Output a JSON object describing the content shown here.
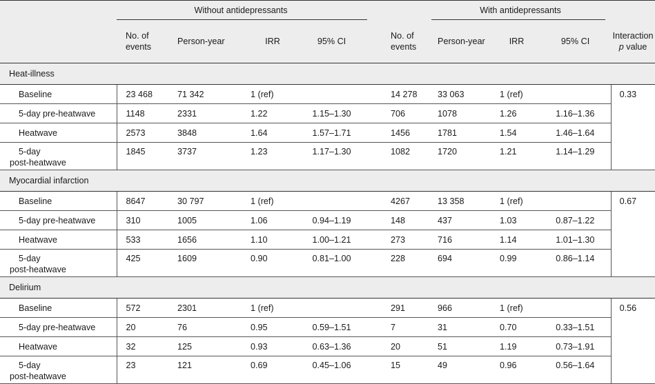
{
  "headers": {
    "group1": "Without antidepressants",
    "group2": "With antidepressants",
    "col_events_1": "No. of",
    "col_events_2": "events",
    "col_py": "Person-year",
    "col_irr": "IRR",
    "col_ci": "95% CI",
    "col_int_1": "Interaction",
    "col_int_2_p": "p",
    "col_int_2_rest": " value"
  },
  "sections": [
    {
      "title": "Heat-illness",
      "interaction": "0.33",
      "rows": [
        {
          "label": "Baseline",
          "e1": "23 468",
          "py1": "71 342",
          "irr1": "1 (ref)",
          "ci1": "",
          "e2": "14 278",
          "py2": "33 063",
          "irr2": "1 (ref)",
          "ci2": ""
        },
        {
          "label": "5-day pre-heatwave",
          "e1": "1148",
          "py1": "2331",
          "irr1": "1.22",
          "ci1": "1.15–1.30",
          "e2": "706",
          "py2": "1078",
          "irr2": "1.26",
          "ci2": "1.16–1.36"
        },
        {
          "label": "Heatwave",
          "e1": "2573",
          "py1": "3848",
          "irr1": "1.64",
          "ci1": "1.57–1.71",
          "e2": "1456",
          "py2": "1781",
          "irr2": "1.54",
          "ci2": "1.46–1.64"
        },
        {
          "label": "5-day",
          "label2": "post-heatwave",
          "e1": "1845",
          "py1": "3737",
          "irr1": "1.23",
          "ci1": "1.17–1.30",
          "e2": "1082",
          "py2": "1720",
          "irr2": "1.21",
          "ci2": "1.14–1.29"
        }
      ]
    },
    {
      "title": "Myocardial infarction",
      "interaction": "0.67",
      "rows": [
        {
          "label": "Baseline",
          "e1": "8647",
          "py1": "30 797",
          "irr1": "1 (ref)",
          "ci1": "",
          "e2": "4267",
          "py2": "13 358",
          "irr2": "1 (ref)",
          "ci2": ""
        },
        {
          "label": "5-day pre-heatwave",
          "e1": "310",
          "py1": "1005",
          "irr1": "1.06",
          "ci1": "0.94–1.19",
          "e2": "148",
          "py2": "437",
          "irr2": "1.03",
          "ci2": "0.87–1.22"
        },
        {
          "label": "Heatwave",
          "e1": "533",
          "py1": "1656",
          "irr1": "1.10",
          "ci1": "1.00–1.21",
          "e2": "273",
          "py2": "716",
          "irr2": "1.14",
          "ci2": "1.01–1.30"
        },
        {
          "label": "5-day",
          "label2": "post-heatwave",
          "e1": "425",
          "py1": "1609",
          "irr1": "0.90",
          "ci1": "0.81–1.00",
          "e2": "228",
          "py2": "694",
          "irr2": "0.99",
          "ci2": "0.86–1.14"
        }
      ]
    },
    {
      "title": "Delirium",
      "interaction": "0.56",
      "rows": [
        {
          "label": "Baseline",
          "e1": "572",
          "py1": "2301",
          "irr1": "1 (ref)",
          "ci1": "",
          "e2": "291",
          "py2": "966",
          "irr2": "1 (ref)",
          "ci2": ""
        },
        {
          "label": "5-day pre-heatwave",
          "e1": "20",
          "py1": "76",
          "irr1": "0.95",
          "ci1": "0.59–1.51",
          "e2": "7",
          "py2": "31",
          "irr2": "0.70",
          "ci2": "0.33–1.51"
        },
        {
          "label": "Heatwave",
          "e1": "32",
          "py1": "125",
          "irr1": "0.93",
          "ci1": "0.63–1.36",
          "e2": "20",
          "py2": "51",
          "irr2": "1.19",
          "ci2": "0.73–1.91"
        },
        {
          "label": "5-day",
          "label2": "post-heatwave",
          "e1": "23",
          "py1": "121",
          "irr1": "0.69",
          "ci1": "0.45–1.06",
          "e2": "15",
          "py2": "49",
          "irr2": "0.96",
          "ci2": "0.56–1.64"
        }
      ]
    }
  ]
}
